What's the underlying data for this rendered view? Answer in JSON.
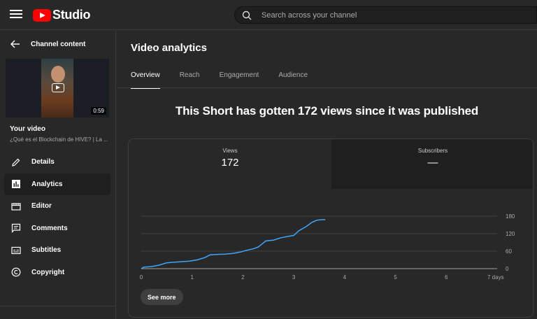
{
  "app": {
    "brand": "Studio"
  },
  "search": {
    "placeholder": "Search across your channel"
  },
  "sidebar": {
    "back_label": "Channel content",
    "video": {
      "duration": "0:59",
      "heading": "Your video",
      "title": "¿Qué es el Blockchain de HIVE? | La ..."
    },
    "items": [
      {
        "label": "Details",
        "icon": "pencil-icon",
        "active": false
      },
      {
        "label": "Analytics",
        "icon": "analytics-icon",
        "active": true
      },
      {
        "label": "Editor",
        "icon": "clapperboard-icon",
        "active": false
      },
      {
        "label": "Comments",
        "icon": "comments-icon",
        "active": false
      },
      {
        "label": "Subtitles",
        "icon": "subtitles-icon",
        "active": false
      },
      {
        "label": "Copyright",
        "icon": "copyright-icon",
        "active": false
      }
    ]
  },
  "main": {
    "title": "Video analytics",
    "tabs": [
      "Overview",
      "Reach",
      "Engagement",
      "Audience"
    ],
    "active_tab": "Overview",
    "headline": "This Short has gotten 172 views since it was published",
    "metrics": {
      "views": {
        "label": "Views",
        "value": "172"
      },
      "subscribers": {
        "label": "Subscribers",
        "value": "—"
      }
    },
    "see_more": "See more"
  },
  "chart_data": {
    "type": "line",
    "x_unit_label": "days",
    "xlim": [
      0,
      7
    ],
    "ylim": [
      0,
      180
    ],
    "x_ticks": [
      "0",
      "1",
      "2",
      "3",
      "4",
      "5",
      "6",
      "7 days"
    ],
    "y_ticks": [
      0,
      60,
      120,
      180
    ],
    "y_axis_side": "right",
    "series": [
      {
        "color": "#3ea6ff",
        "points": [
          [
            0,
            0
          ],
          [
            0.05,
            5
          ],
          [
            0.2,
            7
          ],
          [
            0.35,
            12
          ],
          [
            0.5,
            20
          ],
          [
            0.65,
            22
          ],
          [
            0.8,
            24
          ],
          [
            0.95,
            26
          ],
          [
            1.1,
            30
          ],
          [
            1.25,
            38
          ],
          [
            1.35,
            47
          ],
          [
            1.5,
            49
          ],
          [
            1.65,
            50
          ],
          [
            1.8,
            52
          ],
          [
            1.95,
            57
          ],
          [
            2.05,
            62
          ],
          [
            2.2,
            68
          ],
          [
            2.3,
            74
          ],
          [
            2.4,
            88
          ],
          [
            2.45,
            95
          ],
          [
            2.6,
            98
          ],
          [
            2.75,
            106
          ],
          [
            2.9,
            111
          ],
          [
            3.0,
            114
          ],
          [
            3.1,
            130
          ],
          [
            3.25,
            145
          ],
          [
            3.35,
            158
          ],
          [
            3.45,
            166
          ],
          [
            3.55,
            168
          ],
          [
            3.62,
            168
          ]
        ]
      }
    ]
  }
}
